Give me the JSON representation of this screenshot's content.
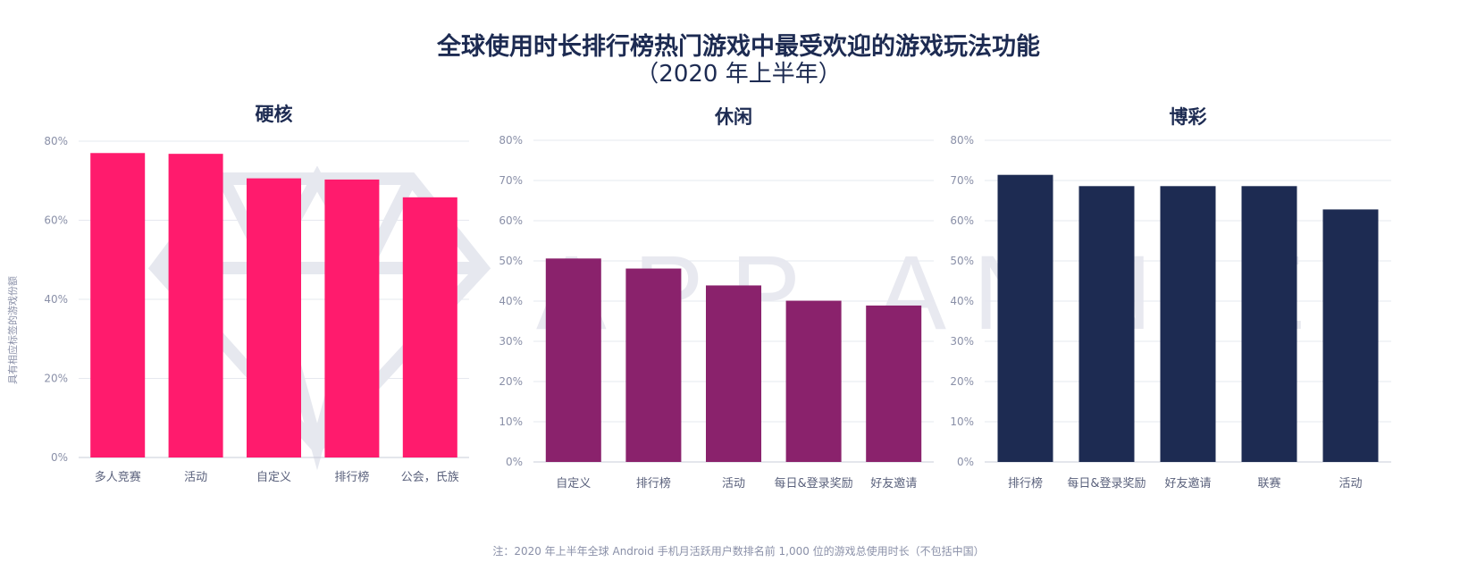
{
  "title": "全球使用时长排行榜热门游戏中最受欢迎的游戏玩法功能",
  "subtitle": "（2020 年上半年）",
  "watermark": "APP ANNIE",
  "footnote": "注：2020 年上半年全球 Android 手机月活跃用户数排名前 1,000 位的游戏总使用时长（不包括中国）",
  "chart_data": [
    {
      "type": "bar",
      "title": "硬核",
      "ylabel": "具有相应标签的游戏份额",
      "color": "#ff1b6d",
      "categories": [
        "多人竞赛",
        "活动",
        "自定义",
        "排行榜",
        "公会，氏族"
      ],
      "values": [
        77,
        76.8,
        70.6,
        70.3,
        65.8
      ],
      "ylim": [
        0,
        80
      ],
      "yticks": [
        0,
        20,
        40,
        60,
        80
      ],
      "ytick_labels": [
        "0%",
        "20%",
        "40%",
        "60%",
        "80%"
      ],
      "grid": true
    },
    {
      "type": "bar",
      "title": "休闲",
      "ylabel": "",
      "color": "#8a226c",
      "categories": [
        "自定义",
        "排行榜",
        "活动",
        "每日&登录奖励",
        "好友邀请"
      ],
      "values": [
        50.6,
        48.1,
        43.9,
        40.1,
        38.9
      ],
      "ylim": [
        0,
        80
      ],
      "yticks": [
        0,
        10,
        20,
        30,
        40,
        50,
        60,
        70,
        80
      ],
      "ytick_labels": [
        "0%",
        "10%",
        "20%",
        "30%",
        "40%",
        "50%",
        "60%",
        "70%",
        "80%"
      ],
      "grid": true
    },
    {
      "type": "bar",
      "title": "博彩",
      "ylabel": "",
      "color": "#1d2b52",
      "categories": [
        "排行榜",
        "每日&登录奖励",
        "好友邀请",
        "联赛",
        "活动"
      ],
      "values": [
        71.4,
        68.6,
        68.6,
        68.6,
        62.8
      ],
      "ylim": [
        0,
        80
      ],
      "yticks": [
        0,
        10,
        20,
        30,
        40,
        50,
        60,
        70,
        80
      ],
      "ytick_labels": [
        "0%",
        "10%",
        "20%",
        "30%",
        "40%",
        "50%",
        "60%",
        "70%",
        "80%"
      ],
      "grid": true
    }
  ]
}
